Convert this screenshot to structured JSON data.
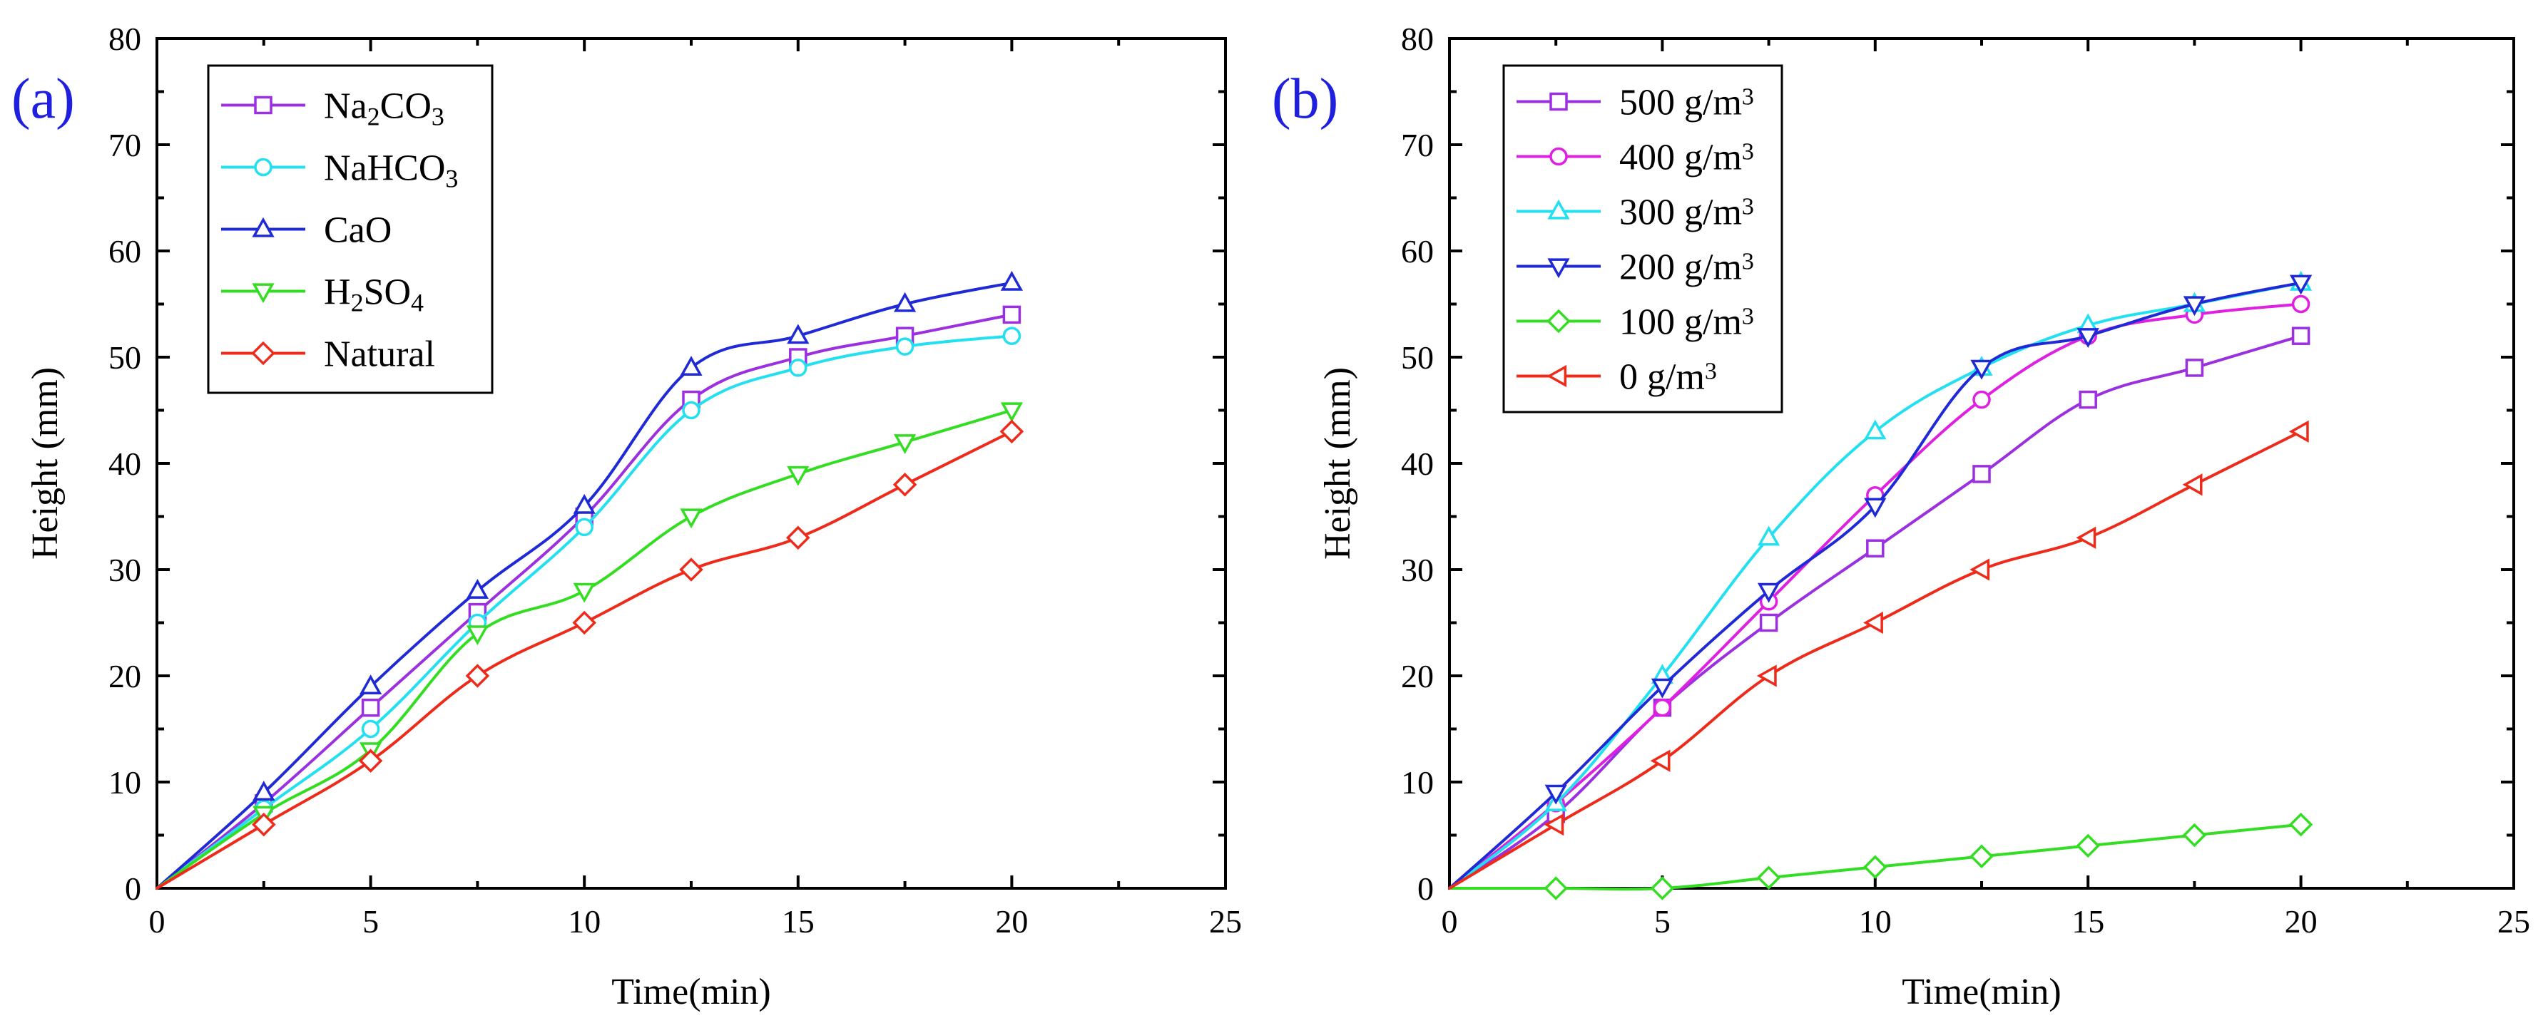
{
  "chart_data": [
    {
      "type": "line",
      "panel_label": "(a)",
      "title": "",
      "xlabel": "Time(min)",
      "ylabel": "Height (mm)",
      "xlim": [
        0,
        25
      ],
      "ylim": [
        0,
        80
      ],
      "xticks": [
        0,
        5,
        10,
        15,
        20,
        25
      ],
      "yticks": [
        0,
        10,
        20,
        30,
        40,
        50,
        60,
        70,
        80
      ],
      "grid": false,
      "legend_position": "top-left",
      "x": [
        0,
        2.5,
        5,
        7.5,
        10,
        12.5,
        15,
        17.5,
        20
      ],
      "series": [
        {
          "name": "Na2CO3",
          "label_base": "Na",
          "label_parts": [
            {
              "t": "Na",
              "sub": false
            },
            {
              "t": "2",
              "sub": true
            },
            {
              "t": "CO",
              "sub": false
            },
            {
              "t": "3",
              "sub": true
            }
          ],
          "color": "#9b30e0",
          "marker": "square",
          "values": [
            0,
            8,
            17,
            26,
            35,
            46,
            50,
            52,
            54
          ]
        },
        {
          "name": "NaHCO3",
          "label_parts": [
            {
              "t": "NaHCO",
              "sub": false
            },
            {
              "t": "3",
              "sub": true
            }
          ],
          "color": "#22e0f0",
          "marker": "circle",
          "values": [
            0,
            7.5,
            15,
            25,
            34,
            45,
            49,
            51,
            52
          ]
        },
        {
          "name": "CaO",
          "label_parts": [
            {
              "t": "CaO",
              "sub": false
            }
          ],
          "color": "#1f2ad6",
          "marker": "triangle-up",
          "values": [
            0,
            9,
            19,
            28,
            36,
            49,
            52,
            55,
            57
          ]
        },
        {
          "name": "H2SO4",
          "label_parts": [
            {
              "t": "H",
              "sub": false
            },
            {
              "t": "2",
              "sub": true
            },
            {
              "t": "SO",
              "sub": false
            },
            {
              "t": "4",
              "sub": true
            }
          ],
          "color": "#33dd22",
          "marker": "triangle-down",
          "values": [
            0,
            7,
            13,
            24,
            28,
            35,
            39,
            42,
            45
          ]
        },
        {
          "name": "Natural",
          "label_parts": [
            {
              "t": "Natural",
              "sub": false
            }
          ],
          "color": "#ee2a1a",
          "marker": "diamond",
          "values": [
            0,
            6,
            12,
            20,
            25,
            30,
            33,
            38,
            43
          ]
        }
      ]
    },
    {
      "type": "line",
      "panel_label": "(b)",
      "title": "",
      "xlabel": "Time(min)",
      "ylabel": "Height (mm)",
      "xlim": [
        0,
        25
      ],
      "ylim": [
        0,
        80
      ],
      "xticks": [
        0,
        5,
        10,
        15,
        20,
        25
      ],
      "yticks": [
        0,
        10,
        20,
        30,
        40,
        50,
        60,
        70,
        80
      ],
      "grid": false,
      "legend_position": "top-left",
      "x": [
        0,
        2.5,
        5,
        7.5,
        10,
        12.5,
        15,
        17.5,
        20
      ],
      "series": [
        {
          "name": "500 g/m3",
          "label_parts": [
            {
              "t": "500 g/m",
              "sub": false
            },
            {
              "t": "3",
              "sup": true
            }
          ],
          "color": "#9b30e0",
          "marker": "square",
          "values": [
            0,
            7,
            17,
            25,
            32,
            39,
            46,
            49,
            52
          ]
        },
        {
          "name": "400 g/m3",
          "label_parts": [
            {
              "t": "400 g/m",
              "sub": false
            },
            {
              "t": "3",
              "sup": true
            }
          ],
          "color": "#e020e0",
          "marker": "circle",
          "values": [
            0,
            8,
            17,
            27,
            37,
            46,
            52,
            54,
            55
          ]
        },
        {
          "name": "300 g/m3",
          "label_parts": [
            {
              "t": "300 g/m",
              "sub": false
            },
            {
              "t": "3",
              "sup": true
            }
          ],
          "color": "#22e0f0",
          "marker": "triangle-up",
          "values": [
            0,
            8,
            20,
            33,
            43,
            49,
            53,
            55,
            57
          ]
        },
        {
          "name": "200 g/m3",
          "label_parts": [
            {
              "t": "200 g/m",
              "sub": false
            },
            {
              "t": "3",
              "sup": true
            }
          ],
          "color": "#1f2ad6",
          "marker": "triangle-down",
          "values": [
            0,
            9,
            19,
            28,
            36,
            49,
            52,
            55,
            57
          ]
        },
        {
          "name": "100 g/m3",
          "label_parts": [
            {
              "t": "100 g/m",
              "sub": false
            },
            {
              "t": "3",
              "sup": true
            }
          ],
          "color": "#33dd22",
          "marker": "diamond",
          "values": [
            0,
            0,
            0,
            1,
            2,
            3,
            4,
            5,
            6
          ]
        },
        {
          "name": "0 g/m3",
          "label_parts": [
            {
              "t": "0     g/m",
              "sub": false
            },
            {
              "t": "3",
              "sup": true
            }
          ],
          "color": "#ee2a1a",
          "marker": "triangle-left",
          "values": [
            0,
            6,
            12,
            20,
            25,
            30,
            33,
            38,
            43
          ]
        }
      ]
    }
  ]
}
